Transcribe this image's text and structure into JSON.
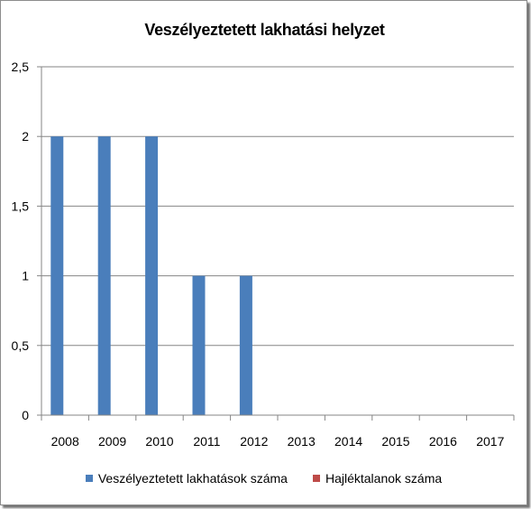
{
  "chart_data": {
    "type": "bar",
    "title": "Veszélyeztetett lakhatási helyzet",
    "xlabel": "",
    "ylabel": "",
    "categories": [
      "2008",
      "2009",
      "2010",
      "2011",
      "2012",
      "2013",
      "2014",
      "2015",
      "2016",
      "2017"
    ],
    "series": [
      {
        "name": "Veszélyeztetett lakhatások száma",
        "color": "#4a7ebb",
        "values": [
          2,
          2,
          2,
          1,
          1,
          0,
          0,
          0,
          0,
          0
        ]
      },
      {
        "name": "Hajléktalanok száma",
        "color": "#be4b48",
        "values": [
          0,
          0,
          0,
          0,
          0,
          0,
          0,
          0,
          0,
          0
        ]
      }
    ],
    "ylim": [
      0,
      2.5
    ],
    "yticks": [
      "0",
      "0,5",
      "1",
      "1,5",
      "2",
      "2,5"
    ],
    "ytick_values": [
      0,
      0.5,
      1,
      1.5,
      2,
      2.5
    ],
    "grid": true,
    "legend_position": "bottom"
  }
}
